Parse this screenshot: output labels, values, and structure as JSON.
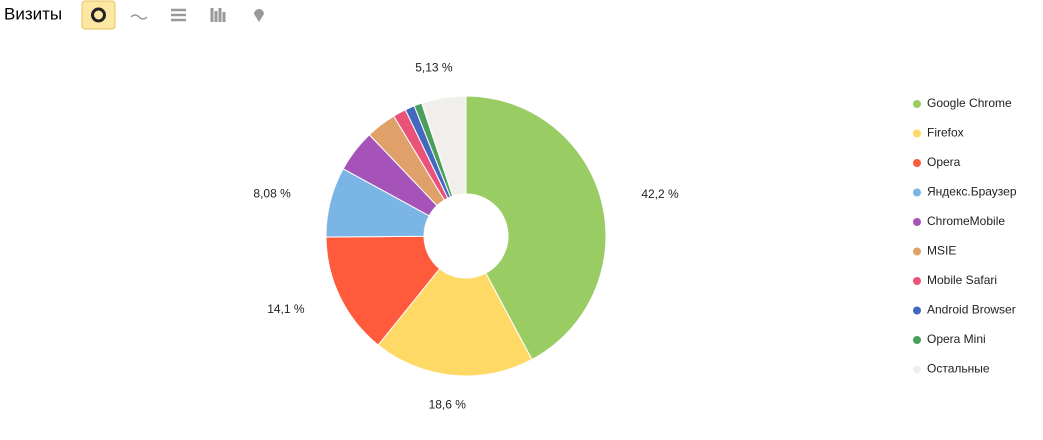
{
  "chart_data": {
    "type": "pie",
    "title": "Визиты",
    "categories": [
      "Google Chrome",
      "Firefox",
      "Opera",
      "Яндекс.Браузер",
      "ChromeMobile",
      "MSIE",
      "Mobile Safari",
      "Android Browser",
      "Opera Mini",
      "Остальные"
    ],
    "values": [
      42.2,
      18.6,
      14.1,
      8.08,
      4.9,
      3.5,
      1.5,
      1.1,
      0.9,
      5.13
    ],
    "value_labels": [
      "42,2 %",
      "18,6 %",
      "14,1 %",
      "8,08 %",
      null,
      null,
      null,
      null,
      null,
      "5,13 %"
    ],
    "colors": [
      "#99cd64",
      "#ffd966",
      "#ff5a3c",
      "#7ab5e5",
      "#a553b9",
      "#e0a06a",
      "#e9537a",
      "#4468c0",
      "#4a9e5c",
      "#f0efeb"
    ],
    "legend": "right"
  }
}
